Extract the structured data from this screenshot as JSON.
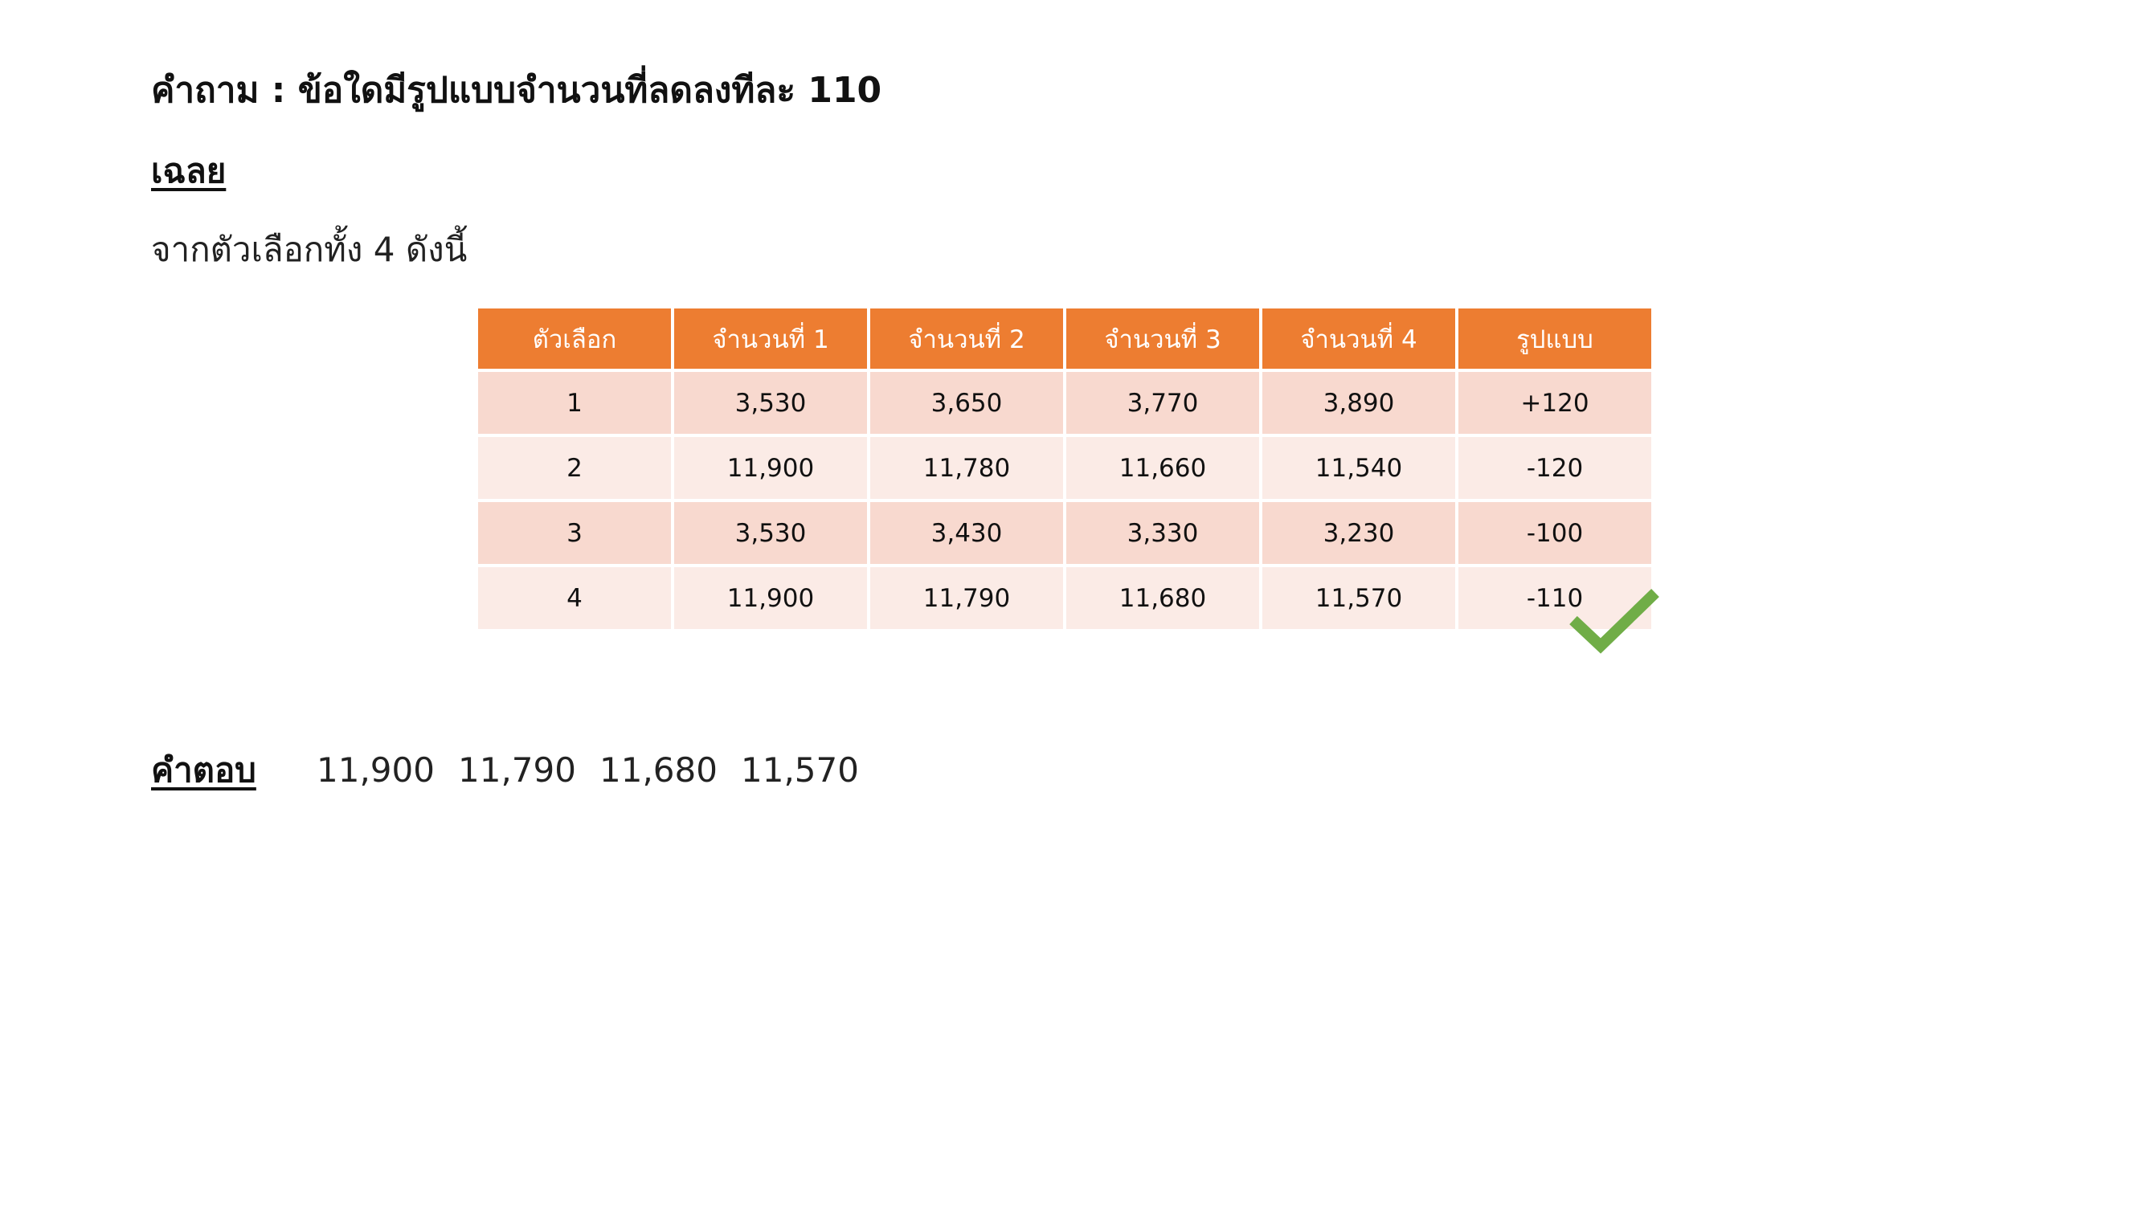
{
  "question": {
    "text": "คำถาม : ข้อใดมีรูปแบบจำนวนที่ลดลงทีละ 110"
  },
  "solution": {
    "label": "เฉลย",
    "intro": "จากตัวเลือกทั้ง 4 ดังนี้"
  },
  "table": {
    "headers": [
      "ตัวเลือก",
      "จำนวนที่ 1",
      "จำนวนที่ 2",
      "จำนวนที่ 3",
      "จำนวนที่ 4",
      "รูปแบบ"
    ],
    "rows": [
      [
        "1",
        "3,530",
        "3,650",
        "3,770",
        "3,890",
        "+120"
      ],
      [
        "2",
        "11,900",
        "11,780",
        "11,660",
        "11,540",
        "-120"
      ],
      [
        "3",
        "3,530",
        "3,430",
        "3,330",
        "3,230",
        "-100"
      ],
      [
        "4",
        "11,900",
        "11,790",
        "11,680",
        "11,570",
        "-110"
      ]
    ]
  },
  "answer": {
    "label": "คำตอบ",
    "values": [
      "11,900",
      "11,790",
      "11,680",
      "11,570"
    ]
  },
  "marks": {
    "correct_row_icon": "checkmark-icon",
    "correct_row": "4"
  },
  "colors": {
    "header_bg": "#ED7D31",
    "row_odd_bg": "#F8D9CF",
    "row_even_bg": "#FBEBE6",
    "checkmark": "#70AD47"
  }
}
